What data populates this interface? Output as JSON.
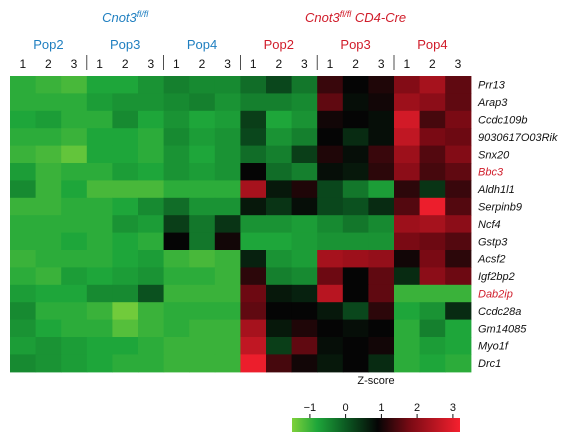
{
  "chart_data": {
    "type": "heatmap",
    "value_label": "Z-score",
    "condition_groups": [
      {
        "label": "Cnot3",
        "label_sup": "fl/fl",
        "label_suffix": "",
        "color": "#1f7fc0",
        "populations": [
          "Pop2",
          "Pop3",
          "Pop4"
        ]
      },
      {
        "label": "Cnot3",
        "label_sup": "fl/fl",
        "label_suffix": " CD4-Cre",
        "color": "#d01c2a",
        "populations": [
          "Pop2",
          "Pop3",
          "Pop4"
        ]
      }
    ],
    "replicates": [
      "1",
      "2",
      "3"
    ],
    "columns": [
      "WT-Pop2-1",
      "WT-Pop2-2",
      "WT-Pop2-3",
      "WT-Pop3-1",
      "WT-Pop3-2",
      "WT-Pop3-3",
      "WT-Pop4-1",
      "WT-Pop4-2",
      "WT-Pop4-3",
      "KO-Pop2-1",
      "KO-Pop2-2",
      "KO-Pop2-3",
      "KO-Pop3-1",
      "KO-Pop3-2",
      "KO-Pop3-3",
      "KO-Pop4-1",
      "KO-Pop4-2",
      "KO-Pop4-3"
    ],
    "genes": [
      {
        "name": "Prr13",
        "color": "#111111"
      },
      {
        "name": "Arap3",
        "color": "#111111"
      },
      {
        "name": "Ccdc109b",
        "color": "#111111"
      },
      {
        "name": "9030617O03Rik",
        "color": "#111111"
      },
      {
        "name": "Snx20",
        "color": "#111111"
      },
      {
        "name": "Bbc3",
        "color": "#d01c2a"
      },
      {
        "name": "Aldh1l1",
        "color": "#111111"
      },
      {
        "name": "Serpinb9",
        "color": "#111111"
      },
      {
        "name": "Ncf4",
        "color": "#111111"
      },
      {
        "name": "Gstp3",
        "color": "#111111"
      },
      {
        "name": "Acsf2",
        "color": "#111111"
      },
      {
        "name": "Igf2bp2",
        "color": "#111111"
      },
      {
        "name": "Dab2ip",
        "color": "#d01c2a"
      },
      {
        "name": "Ccdc28a",
        "color": "#111111"
      },
      {
        "name": "Gm14085",
        "color": "#111111"
      },
      {
        "name": "Myo1f",
        "color": "#111111"
      },
      {
        "name": "Drc1",
        "color": "#111111"
      }
    ],
    "values": [
      [
        -0.9,
        -1.0,
        -1.1,
        -0.8,
        -0.8,
        -0.6,
        -0.4,
        -0.5,
        -0.5,
        -0.2,
        0.2,
        -0.3,
        1.3,
        0.9,
        1.1,
        1.9,
        2.3,
        1.6
      ],
      [
        -0.9,
        -0.9,
        -0.9,
        -0.7,
        -0.6,
        -0.6,
        -0.5,
        -0.4,
        -0.6,
        -0.4,
        -0.4,
        -0.5,
        1.6,
        0.8,
        1.0,
        2.2,
        2.0,
        1.6
      ],
      [
        -0.8,
        -0.7,
        -0.9,
        -0.9,
        -0.5,
        -0.8,
        -0.6,
        -0.8,
        -0.7,
        0.3,
        -0.8,
        -0.6,
        1.0,
        0.9,
        0.8,
        2.8,
        1.4,
        1.8
      ],
      [
        -0.9,
        -0.9,
        -1.0,
        -0.8,
        -0.8,
        -0.9,
        -0.5,
        -0.7,
        -0.6,
        0.2,
        -0.6,
        -0.4,
        0.9,
        0.5,
        0.8,
        2.6,
        1.8,
        1.7
      ],
      [
        -1.0,
        -1.1,
        -1.3,
        -0.8,
        -0.8,
        -0.9,
        -0.6,
        -0.8,
        -0.6,
        -0.2,
        -0.4,
        0.3,
        1.1,
        0.8,
        1.3,
        2.2,
        1.5,
        1.9
      ],
      [
        -0.7,
        -1.0,
        -0.9,
        -0.9,
        -0.7,
        -0.8,
        -0.6,
        -0.7,
        -0.6,
        0.9,
        -0.2,
        -0.4,
        0.8,
        0.7,
        1.2,
        2.0,
        1.4,
        1.6
      ],
      [
        -0.5,
        -1.0,
        -0.8,
        -1.1,
        -1.1,
        -1.1,
        -0.9,
        -0.9,
        -0.9,
        2.3,
        0.7,
        1.1,
        0.2,
        -0.3,
        -0.7,
        1.2,
        0.4,
        1.3
      ],
      [
        -1.0,
        -1.0,
        -0.9,
        -0.9,
        -0.8,
        -0.5,
        -0.2,
        -0.6,
        -0.6,
        0.7,
        0.4,
        0.8,
        0.2,
        0.1,
        0.5,
        1.5,
        3.1,
        1.5
      ],
      [
        -0.9,
        -0.9,
        -0.9,
        -0.9,
        -0.6,
        -0.7,
        0.3,
        -0.3,
        0.4,
        -0.6,
        -0.6,
        -0.7,
        -0.5,
        -0.3,
        -0.5,
        2.2,
        2.3,
        2.0
      ],
      [
        -0.9,
        -0.9,
        -0.8,
        -0.9,
        -0.8,
        -0.9,
        0.9,
        -0.3,
        1.0,
        -0.8,
        -0.8,
        -0.7,
        -0.6,
        -0.6,
        -0.6,
        1.8,
        1.7,
        1.5
      ],
      [
        -1.0,
        -0.9,
        -0.9,
        -0.9,
        -0.8,
        -0.7,
        -1.0,
        -1.1,
        -1.0,
        0.6,
        -0.6,
        -0.7,
        2.3,
        2.2,
        2.1,
        1.0,
        1.8,
        1.2
      ],
      [
        -0.9,
        -1.0,
        -0.7,
        -0.8,
        -0.7,
        -0.6,
        -0.9,
        -0.9,
        -1.0,
        1.2,
        -0.4,
        -0.5,
        1.7,
        0.9,
        1.6,
        0.5,
        2.0,
        1.7
      ],
      [
        -0.7,
        -0.8,
        -0.8,
        -0.5,
        -0.5,
        0.1,
        -1.0,
        -1.0,
        -1.0,
        1.7,
        0.7,
        0.6,
        2.5,
        0.9,
        1.6,
        -1.0,
        -1.0,
        -1.0
      ],
      [
        -0.5,
        -0.9,
        -0.9,
        -1.0,
        -1.4,
        -1.0,
        -0.9,
        -0.9,
        -0.9,
        1.6,
        0.9,
        0.9,
        0.7,
        0.2,
        1.2,
        -0.8,
        -0.6,
        0.5
      ],
      [
        -0.6,
        -0.8,
        -0.9,
        -0.9,
        -1.2,
        -1.0,
        -0.9,
        -1.0,
        -1.0,
        2.3,
        0.7,
        1.1,
        0.9,
        0.8,
        0.9,
        -0.9,
        -0.4,
        -0.8
      ],
      [
        -0.7,
        -0.6,
        -0.7,
        -0.8,
        -0.8,
        -0.9,
        -1.0,
        -1.0,
        -1.0,
        2.6,
        0.3,
        1.6,
        0.8,
        0.9,
        1.0,
        -0.9,
        -0.7,
        -0.8
      ],
      [
        -0.5,
        -0.6,
        -0.7,
        -0.8,
        -0.9,
        -0.9,
        -1.0,
        -1.0,
        -1.0,
        3.1,
        1.4,
        1.0,
        0.7,
        0.9,
        0.5,
        -0.9,
        -0.8,
        -0.9
      ]
    ],
    "colorbar": {
      "min": -1.5,
      "max": 3.2,
      "ticks": [
        -1,
        0,
        1,
        2,
        3
      ],
      "tick_labels": [
        "−1",
        "0",
        "1",
        "2",
        "3"
      ],
      "stops": [
        {
          "value": -1.5,
          "color": "#7fd13b"
        },
        {
          "value": -0.8,
          "color": "#1ea63a"
        },
        {
          "value": 0.0,
          "color": "#0c5a22"
        },
        {
          "value": 0.9,
          "color": "#050505"
        },
        {
          "value": 1.8,
          "color": "#7a0a14"
        },
        {
          "value": 3.2,
          "color": "#f5202e"
        }
      ]
    }
  }
}
